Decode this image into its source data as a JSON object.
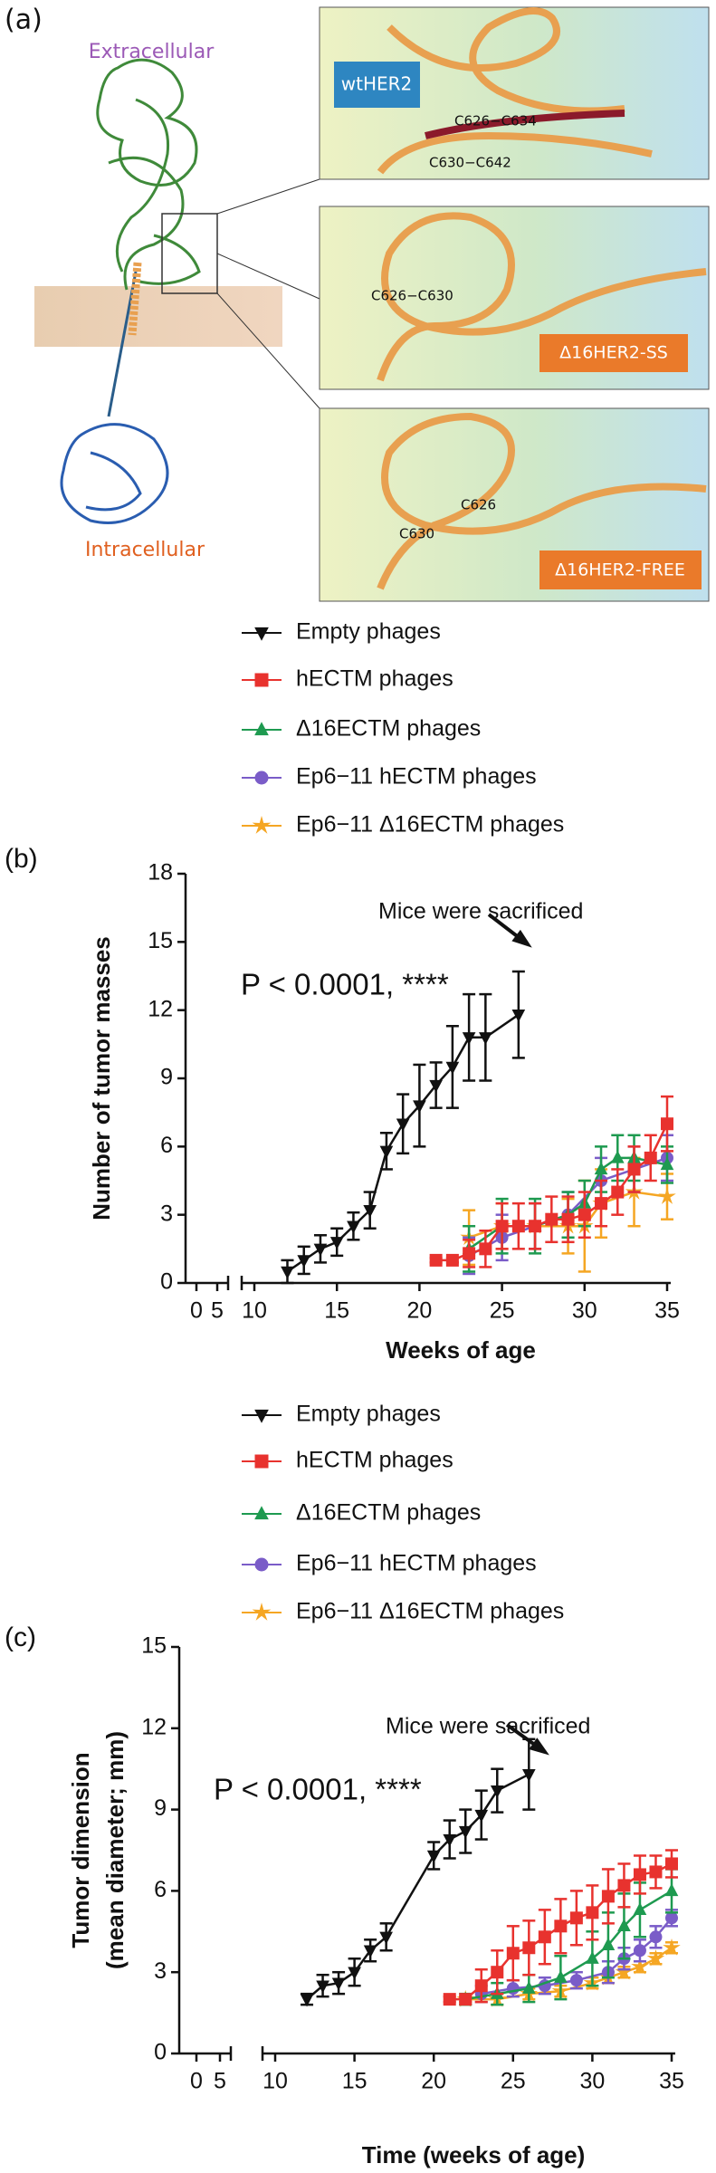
{
  "panel_labels": [
    "(a)",
    "(b)",
    "(c)"
  ],
  "panel_a": {
    "extracellular": "Extracellular",
    "intracellular": "Intracellular",
    "structures": [
      {
        "label": "wtHER2",
        "bonds": [
          "C626−C634",
          "C630−C642"
        ]
      },
      {
        "label": "Δ16HER2-SS",
        "bonds": [
          "C626−C630"
        ]
      },
      {
        "label": "Δ16HER2-FREE",
        "bonds": [
          "C626",
          "C630"
        ]
      }
    ]
  },
  "chart_data": [
    {
      "type": "line",
      "y_label": [
        "Number of tumor masses"
      ],
      "x_label": "Weeks of age",
      "annotation": "Mice were sacrificed",
      "stat_label": "P < 0.0001, ****",
      "xlim": [
        0,
        35
      ],
      "xticks": [
        0,
        5,
        10,
        15,
        20,
        25,
        30,
        35
      ],
      "ylim": [
        0,
        18
      ],
      "yticks": [
        0,
        3,
        6,
        9,
        12,
        15,
        18
      ],
      "series": [
        {
          "name": "Empty phages",
          "color": "#111111",
          "marker": "triangle-down",
          "x": [
            12,
            13,
            14,
            15,
            16,
            17,
            18,
            19,
            20,
            21,
            22,
            23,
            24,
            26
          ],
          "values": [
            0.5,
            1.0,
            1.5,
            1.8,
            2.5,
            3.2,
            5.8,
            7.0,
            7.8,
            8.7,
            9.5,
            10.8,
            10.8,
            11.8
          ],
          "errors": [
            0.5,
            0.6,
            0.6,
            0.6,
            0.6,
            0.8,
            0.8,
            1.3,
            1.8,
            1.0,
            1.8,
            1.9,
            1.9,
            1.9
          ]
        },
        {
          "name": "hECTM phages",
          "color": "#e8322e",
          "marker": "square",
          "x": [
            21,
            22,
            23,
            24,
            25,
            26,
            27,
            28,
            29,
            30,
            31,
            32,
            33,
            34,
            35
          ],
          "values": [
            1,
            1,
            1.3,
            1.5,
            2.5,
            2.5,
            2.5,
            2.8,
            2.8,
            3,
            3.5,
            4,
            5,
            5.5,
            7
          ],
          "errors": [
            0.1,
            0.1,
            0.6,
            0.8,
            1.0,
            1.0,
            1.0,
            1.0,
            1.0,
            1.0,
            1.0,
            1.0,
            1.0,
            1.0,
            1.2
          ]
        },
        {
          "name": "Δ16ECTM phages",
          "color": "#1e9a50",
          "marker": "triangle",
          "x": [
            23,
            25,
            27,
            29,
            30,
            31,
            32,
            33,
            35
          ],
          "values": [
            1.5,
            2.5,
            2.5,
            3,
            3.5,
            5,
            5.5,
            5.5,
            5.2
          ],
          "errors": [
            1.0,
            1.2,
            1.2,
            1.0,
            1.0,
            1.0,
            1.0,
            1.0,
            0.8
          ]
        },
        {
          "name": "Ep6−11 hECTM phages",
          "color": "#7a5cc8",
          "marker": "circle",
          "x": [
            23,
            25,
            27,
            29,
            31,
            33,
            35
          ],
          "values": [
            1.2,
            2,
            2.5,
            3,
            4.5,
            5,
            5.5
          ],
          "errors": [
            0.8,
            1.0,
            1.0,
            1.0,
            1.0,
            1.0,
            1.0
          ]
        },
        {
          "name": "Ep6−11 Δ16ECTM phages",
          "color": "#f5a623",
          "marker": "star",
          "x": [
            23,
            25,
            27,
            29,
            30,
            31,
            33,
            35
          ],
          "values": [
            2,
            2.5,
            2.5,
            2.5,
            2.5,
            3.5,
            4,
            3.8
          ],
          "errors": [
            1.2,
            1.0,
            1.0,
            1.2,
            2.0,
            1.5,
            1.5,
            1.0
          ]
        }
      ]
    },
    {
      "type": "line",
      "y_label": [
        "Tumor dimension",
        "(mean diameter; mm)"
      ],
      "x_label": "Time (weeks of age)",
      "annotation": "Mice were sacrificed",
      "stat_label": "P < 0.0001, ****",
      "xlim": [
        0,
        35
      ],
      "xticks": [
        0,
        5,
        10,
        15,
        20,
        25,
        30,
        35
      ],
      "ylim": [
        0,
        15
      ],
      "yticks": [
        0,
        3,
        6,
        9,
        12,
        15
      ],
      "series": [
        {
          "name": "Empty phages",
          "color": "#111111",
          "marker": "triangle-down",
          "x": [
            12,
            13,
            14,
            15,
            16,
            17,
            20,
            21,
            22,
            23,
            24,
            26
          ],
          "values": [
            2,
            2.5,
            2.6,
            3,
            3.8,
            4.3,
            7.3,
            7.9,
            8.2,
            8.8,
            9.7,
            10.3
          ],
          "errors": [
            0.2,
            0.4,
            0.4,
            0.5,
            0.4,
            0.5,
            0.5,
            0.7,
            0.8,
            0.9,
            0.8,
            1.3
          ]
        },
        {
          "name": "hECTM phages",
          "color": "#e8322e",
          "marker": "square",
          "x": [
            21,
            22,
            23,
            24,
            25,
            26,
            27,
            28,
            29,
            30,
            31,
            32,
            33,
            34,
            35
          ],
          "values": [
            2,
            2,
            2.5,
            3,
            3.7,
            3.9,
            4.3,
            4.7,
            5,
            5.2,
            5.8,
            6.2,
            6.6,
            6.7,
            7
          ],
          "errors": [
            0.1,
            0.1,
            0.6,
            0.8,
            1.0,
            1.0,
            1.0,
            1.0,
            1.0,
            1.0,
            1.0,
            0.8,
            0.7,
            0.6,
            0.5
          ]
        },
        {
          "name": "Δ16ECTM phages",
          "color": "#1e9a50",
          "marker": "triangle",
          "x": [
            22,
            24,
            26,
            28,
            30,
            31,
            32,
            33,
            35
          ],
          "values": [
            2,
            2.2,
            2.4,
            2.8,
            3.5,
            4,
            4.7,
            5.3,
            6
          ],
          "errors": [
            0.2,
            0.4,
            0.5,
            0.8,
            1.0,
            1.2,
            1.2,
            1.0,
            0.8
          ]
        },
        {
          "name": "Ep6−11 hECTM phages",
          "color": "#7a5cc8",
          "marker": "circle",
          "x": [
            23,
            25,
            27,
            29,
            31,
            32,
            33,
            34,
            35
          ],
          "values": [
            2.2,
            2.4,
            2.5,
            2.7,
            3,
            3.5,
            3.8,
            4.3,
            5
          ],
          "errors": [
            0.3,
            0.3,
            0.3,
            0.3,
            0.4,
            0.4,
            0.4,
            0.4,
            0.3
          ]
        },
        {
          "name": "Ep6−11 Δ16ECTM phages",
          "color": "#f5a623",
          "marker": "star",
          "x": [
            22,
            24,
            26,
            28,
            30,
            31,
            32,
            33,
            34,
            35
          ],
          "values": [
            2,
            2,
            2.2,
            2.3,
            2.6,
            2.8,
            3,
            3.2,
            3.5,
            3.9
          ],
          "errors": [
            0.1,
            0.2,
            0.2,
            0.2,
            0.2,
            0.2,
            0.2,
            0.2,
            0.2,
            0.2
          ]
        }
      ]
    }
  ]
}
